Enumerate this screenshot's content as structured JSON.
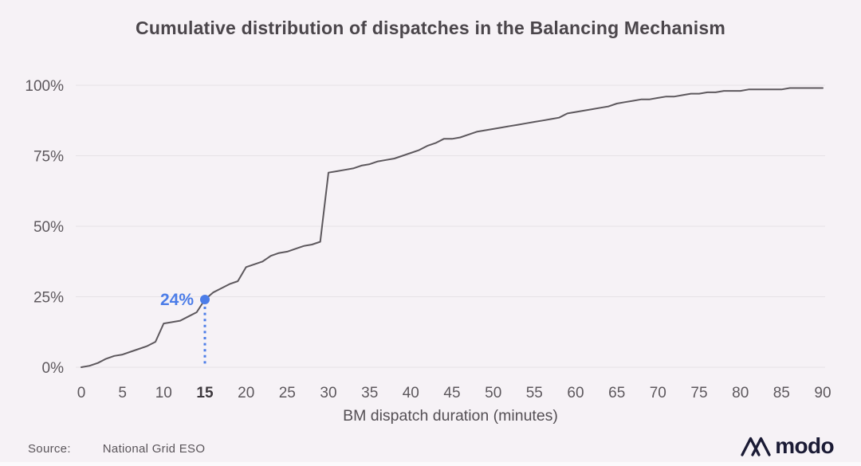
{
  "colors": {
    "background": "#f6f2f6",
    "title_text": "#4b464b",
    "curve": "#5d585d",
    "grid": "#e6e2e6",
    "axis_text": "#5d585d",
    "accent_blue": "#4c7de8",
    "logo_navy": "#1b1b35"
  },
  "chart_data": {
    "type": "line",
    "title": "Cumulative distribution of dispatches in the Balancing Mechanism",
    "xlabel": "BM dispatch duration (minutes)",
    "ylabel": "",
    "xlim": [
      0,
      90
    ],
    "ylim": [
      0,
      100
    ],
    "grid": "horizontal",
    "legend": "none",
    "xticks": [
      0,
      5,
      10,
      15,
      20,
      25,
      30,
      35,
      40,
      45,
      50,
      55,
      60,
      65,
      70,
      75,
      80,
      85,
      90
    ],
    "yticks": [
      0,
      25,
      50,
      75,
      100
    ],
    "ytick_suffix": "%",
    "x": [
      0,
      1,
      2,
      3,
      4,
      5,
      6,
      7,
      8,
      9,
      10,
      11,
      12,
      13,
      14,
      15,
      16,
      17,
      18,
      19,
      20,
      21,
      22,
      23,
      24,
      25,
      26,
      27,
      28,
      29,
      30,
      31,
      32,
      33,
      34,
      35,
      36,
      37,
      38,
      39,
      40,
      41,
      42,
      43,
      44,
      45,
      46,
      47,
      48,
      49,
      50,
      51,
      52,
      53,
      54,
      55,
      56,
      57,
      58,
      59,
      60,
      61,
      62,
      63,
      64,
      65,
      66,
      67,
      68,
      69,
      70,
      71,
      72,
      73,
      74,
      75,
      76,
      77,
      78,
      79,
      80,
      81,
      82,
      83,
      84,
      85,
      86,
      87,
      88,
      89,
      90
    ],
    "values": [
      0,
      0.5,
      1.5,
      3,
      4,
      4.5,
      5.5,
      6.5,
      7.5,
      9,
      15.5,
      16,
      16.5,
      18,
      19.5,
      24,
      26.5,
      28,
      29.5,
      30.5,
      35.5,
      36.5,
      37.5,
      39.5,
      40.5,
      41,
      42,
      43,
      43.5,
      44.5,
      69,
      69.5,
      70,
      70.5,
      71.5,
      72,
      73,
      73.5,
      74,
      75,
      76,
      77,
      78.5,
      79.5,
      81,
      81,
      81.5,
      82.5,
      83.5,
      84,
      84.5,
      85,
      85.5,
      86,
      86.5,
      87,
      87.5,
      88,
      88.5,
      90,
      90.5,
      91,
      91.5,
      92,
      92.5,
      93.5,
      94,
      94.5,
      95,
      95,
      95.5,
      96,
      96,
      96.5,
      97,
      97,
      97.5,
      97.5,
      98,
      98,
      98,
      98.5,
      98.5,
      98.5,
      98.5,
      98.5,
      99,
      99,
      99,
      99,
      99
    ],
    "annotation": {
      "x": 15,
      "y": 24,
      "label": "24%",
      "highlighted_xtick": 15
    }
  },
  "footer": {
    "source_label": "Source:",
    "source_value": "National Grid ESO",
    "logo_text": "modo"
  }
}
